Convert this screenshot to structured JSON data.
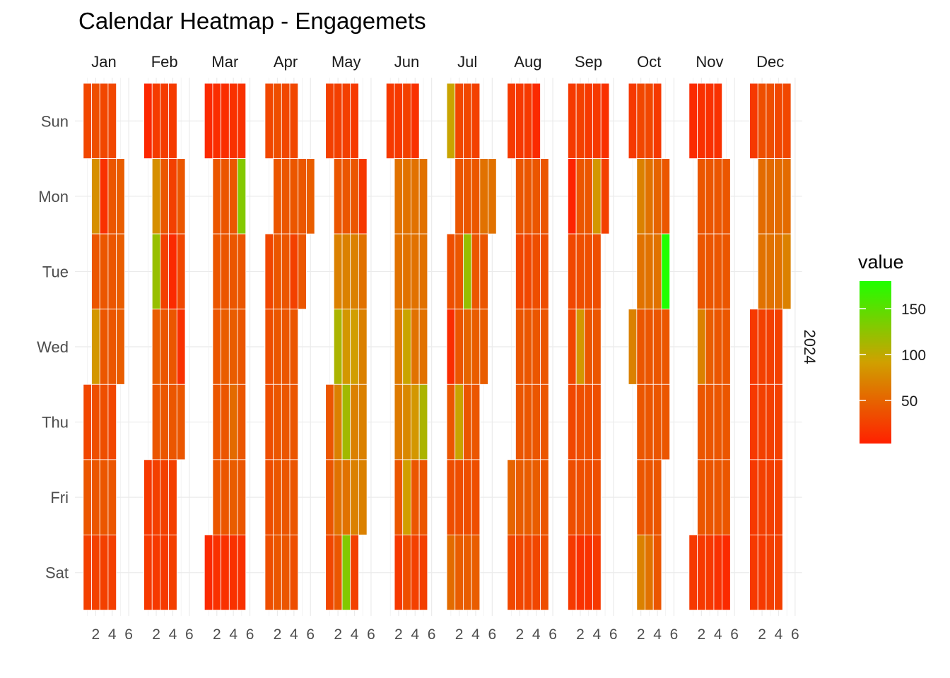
{
  "chart_data": {
    "type": "heatmap",
    "title": "Calendar Heatmap - Engagemets",
    "year": "2024",
    "months": [
      "Jan",
      "Feb",
      "Mar",
      "Apr",
      "May",
      "Jun",
      "Jul",
      "Aug",
      "Sep",
      "Oct",
      "Nov",
      "Dec"
    ],
    "days": [
      "Sun",
      "Mon",
      "Tue",
      "Wed",
      "Thu",
      "Fri",
      "Sat"
    ],
    "x_ticks": [
      2,
      4,
      6
    ],
    "x_range": [
      0,
      6.5
    ],
    "legend": {
      "title": "value",
      "breaks": [
        150,
        100,
        50
      ],
      "min": 3,
      "max": 180
    },
    "colors": {
      "low": "#ff2000",
      "mid": "#d0a000",
      "high": "#20ff00",
      "grid": "#ebebeb"
    },
    "values": [
      [
        [
          30,
          35,
          30,
          30,
          null,
          null
        ],
        [
          null,
          80,
          15,
          40,
          45,
          null
        ],
        [
          null,
          40,
          40,
          40,
          45,
          null
        ],
        [
          null,
          85,
          40,
          40,
          45,
          null
        ],
        [
          30,
          35,
          35,
          30,
          null,
          null
        ],
        [
          40,
          40,
          40,
          40,
          null,
          null
        ],
        [
          25,
          25,
          25,
          25,
          null,
          null
        ]
      ],
      [
        [
          8,
          22,
          22,
          22,
          null,
          null
        ],
        [
          null,
          80,
          40,
          25,
          40,
          null
        ],
        [
          null,
          120,
          25,
          10,
          30,
          null
        ],
        [
          null,
          45,
          40,
          40,
          15,
          null
        ],
        [
          null,
          40,
          40,
          40,
          40,
          null
        ],
        [
          20,
          25,
          25,
          25,
          null,
          null
        ],
        [
          20,
          20,
          20,
          25,
          null,
          null
        ]
      ],
      [
        [
          10,
          12,
          12,
          15,
          15,
          null
        ],
        [
          null,
          40,
          40,
          40,
          130,
          null
        ],
        [
          null,
          40,
          40,
          40,
          40,
          null
        ],
        [
          null,
          40,
          45,
          45,
          40,
          null
        ],
        [
          null,
          40,
          40,
          55,
          40,
          null
        ],
        [
          null,
          40,
          40,
          45,
          40,
          null
        ],
        [
          10,
          15,
          15,
          15,
          15,
          null
        ]
      ],
      [
        [
          30,
          35,
          30,
          30,
          null,
          null
        ],
        [
          null,
          40,
          40,
          40,
          40,
          45
        ],
        [
          30,
          40,
          40,
          25,
          40,
          null
        ],
        [
          35,
          40,
          40,
          40,
          null,
          null
        ],
        [
          35,
          40,
          40,
          40,
          null,
          null
        ],
        [
          35,
          40,
          40,
          40,
          null,
          null
        ],
        [
          35,
          40,
          40,
          35,
          null,
          null
        ]
      ],
      [
        [
          25,
          25,
          25,
          20,
          null,
          null
        ],
        [
          null,
          40,
          40,
          40,
          20,
          null
        ],
        [
          null,
          70,
          70,
          70,
          60,
          null
        ],
        [
          null,
          110,
          85,
          90,
          70,
          null
        ],
        [
          40,
          70,
          115,
          70,
          70,
          null
        ],
        [
          40,
          60,
          60,
          70,
          70,
          null
        ],
        [
          30,
          40,
          130,
          25,
          null,
          null
        ]
      ],
      [
        [
          20,
          20,
          25,
          15,
          null,
          null
        ],
        [
          null,
          60,
          60,
          60,
          60,
          null
        ],
        [
          null,
          60,
          60,
          60,
          60,
          null
        ],
        [
          null,
          65,
          95,
          60,
          60,
          null
        ],
        [
          null,
          65,
          75,
          85,
          110,
          null
        ],
        [
          null,
          40,
          90,
          40,
          40,
          null
        ],
        [
          null,
          20,
          35,
          25,
          25,
          null
        ]
      ],
      [
        [
          95,
          30,
          30,
          25,
          null,
          null
        ],
        [
          null,
          40,
          40,
          40,
          60,
          60
        ],
        [
          35,
          40,
          120,
          40,
          40,
          null
        ],
        [
          12,
          40,
          50,
          45,
          45,
          null
        ],
        [
          40,
          95,
          40,
          40,
          null,
          null
        ],
        [
          35,
          35,
          35,
          35,
          null,
          null
        ],
        [
          55,
          45,
          45,
          45,
          null,
          null
        ]
      ],
      [
        [
          20,
          20,
          20,
          10,
          null,
          null
        ],
        [
          null,
          40,
          40,
          40,
          40,
          null
        ],
        [
          null,
          30,
          30,
          35,
          35,
          null
        ],
        [
          null,
          40,
          40,
          40,
          40,
          null
        ],
        [
          null,
          40,
          40,
          40,
          40,
          null
        ],
        [
          50,
          45,
          45,
          45,
          40,
          null
        ],
        [
          30,
          30,
          30,
          30,
          35,
          null
        ]
      ],
      [
        [
          20,
          25,
          20,
          20,
          15,
          null
        ],
        [
          5,
          40,
          40,
          85,
          25,
          null
        ],
        [
          30,
          35,
          35,
          35,
          null,
          null
        ],
        [
          30,
          85,
          40,
          40,
          null,
          null
        ],
        [
          30,
          35,
          35,
          35,
          null,
          null
        ],
        [
          35,
          35,
          35,
          35,
          null,
          null
        ],
        [
          20,
          15,
          15,
          20,
          null,
          null
        ]
      ],
      [
        [
          20,
          30,
          30,
          20,
          null,
          null
        ],
        [
          null,
          70,
          60,
          50,
          40,
          null
        ],
        [
          null,
          60,
          60,
          60,
          180,
          null
        ],
        [
          70,
          40,
          40,
          40,
          40,
          null
        ],
        [
          null,
          40,
          40,
          40,
          40,
          null
        ],
        [
          null,
          40,
          40,
          40,
          null,
          null
        ],
        [
          null,
          70,
          60,
          40,
          null,
          null
        ]
      ],
      [
        [
          10,
          15,
          15,
          15,
          null,
          null
        ],
        [
          null,
          40,
          40,
          40,
          40,
          null
        ],
        [
          null,
          40,
          40,
          40,
          40,
          null
        ],
        [
          null,
          70,
          45,
          40,
          40,
          null
        ],
        [
          null,
          40,
          40,
          40,
          40,
          null
        ],
        [
          null,
          40,
          40,
          40,
          40,
          null
        ],
        [
          20,
          20,
          20,
          15,
          10,
          null
        ]
      ],
      [
        [
          20,
          35,
          35,
          30,
          30,
          null
        ],
        [
          null,
          55,
          55,
          55,
          55,
          null
        ],
        [
          null,
          60,
          60,
          60,
          70,
          null
        ],
        [
          20,
          25,
          25,
          25,
          null,
          null
        ],
        [
          20,
          25,
          25,
          25,
          null,
          null
        ],
        [
          20,
          25,
          25,
          25,
          null,
          null
        ],
        [
          20,
          20,
          25,
          25,
          null,
          null
        ]
      ]
    ]
  }
}
